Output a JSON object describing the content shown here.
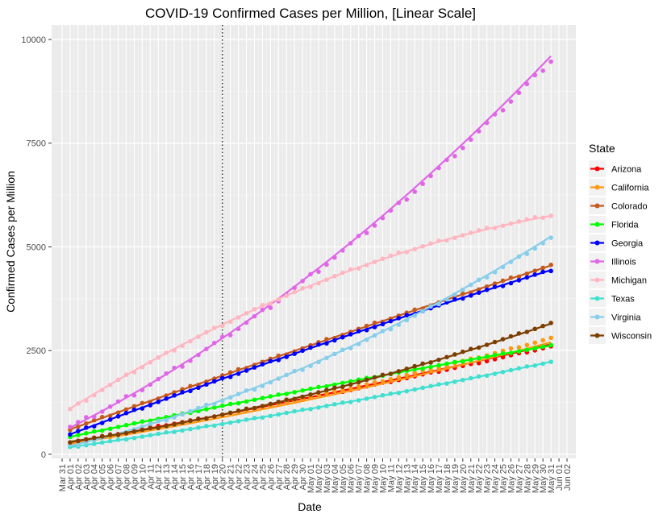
{
  "chart_data": {
    "type": "scatter",
    "title": "COVID-19 Confirmed Cases per Million, [Linear Scale]",
    "xlabel": "Date",
    "ylabel": "Confirmed Cases per Million",
    "x_start_date": "2020-03-31",
    "x_end_date": "2020-06-02",
    "x_ticks": [
      "Mar 31",
      "Apr 01",
      "Apr 02",
      "Apr 03",
      "Apr 04",
      "Apr 05",
      "Apr 06",
      "Apr 07",
      "Apr 08",
      "Apr 09",
      "Apr 10",
      "Apr 11",
      "Apr 12",
      "Apr 13",
      "Apr 14",
      "Apr 15",
      "Apr 16",
      "Apr 17",
      "Apr 18",
      "Apr 19",
      "Apr 20",
      "Apr 21",
      "Apr 22",
      "Apr 23",
      "Apr 24",
      "Apr 25",
      "Apr 26",
      "Apr 27",
      "Apr 28",
      "Apr 29",
      "Apr 30",
      "May 01",
      "May 02",
      "May 03",
      "May 04",
      "May 05",
      "May 06",
      "May 07",
      "May 08",
      "May 09",
      "May 10",
      "May 11",
      "May 12",
      "May 13",
      "May 14",
      "May 15",
      "May 16",
      "May 17",
      "May 18",
      "May 19",
      "May 20",
      "May 21",
      "May 22",
      "May 23",
      "May 24",
      "May 25",
      "May 26",
      "May 27",
      "May 28",
      "May 29",
      "May 30",
      "May 31",
      "Jun 01",
      "Jun 02"
    ],
    "y_ticks": [
      0,
      2500,
      5000,
      7500,
      10000
    ],
    "y_tick_labels": [
      "0",
      "2500",
      "5000",
      "7500",
      "10000"
    ],
    "ylim": [
      -100,
      10350
    ],
    "vline_date": "2020-04-20",
    "grid": true,
    "legend_title": "State",
    "legend_position": "right",
    "data_start_date": "2020-04-01",
    "data_end_date": "2020-05-31",
    "series": [
      {
        "name": "Arizona",
        "color": "#ff0000",
        "start": 300,
        "end": 2600,
        "curve": 0.15,
        "fit_start": 280,
        "fit_end": 2650
      },
      {
        "name": "California",
        "color": "#ff9912",
        "start": 270,
        "end": 2800,
        "curve": 0.25,
        "fit_start": 250,
        "fit_end": 2700
      },
      {
        "name": "Colorado",
        "color": "#c65a1e",
        "start": 600,
        "end": 4550,
        "curve": -0.05,
        "fit_start": 600,
        "fit_end": 4550
      },
      {
        "name": "Florida",
        "color": "#00ff00",
        "start": 420,
        "end": 2620,
        "curve": -0.1,
        "fit_start": 420,
        "fit_end": 2620
      },
      {
        "name": "Georgia",
        "color": "#0000ff",
        "start": 480,
        "end": 4440,
        "curve": -0.1,
        "fit_start": 480,
        "fit_end": 4440
      },
      {
        "name": "Illinois",
        "color": "#e066e8",
        "start": 650,
        "end": 9500,
        "curve": 0.35,
        "fit_start": 640,
        "fit_end": 9600
      },
      {
        "name": "Michigan",
        "color": "#ffb6c1",
        "start": 1080,
        "end": 5760,
        "curve": -0.55,
        "fit_start": 1100,
        "fit_end": 5750
      },
      {
        "name": "Texas",
        "color": "#40e0d0",
        "start": 170,
        "end": 2230,
        "curve": 0.2,
        "fit_start": 170,
        "fit_end": 2230
      },
      {
        "name": "Virginia",
        "color": "#87ceeb",
        "start": 200,
        "end": 5220,
        "curve": 0.45,
        "fit_start": 200,
        "fit_end": 5250
      },
      {
        "name": "Wisconsin",
        "color": "#7b3f00",
        "start": 300,
        "end": 3160,
        "curve": 0.4,
        "fit_start": 300,
        "fit_end": 3150
      }
    ]
  }
}
